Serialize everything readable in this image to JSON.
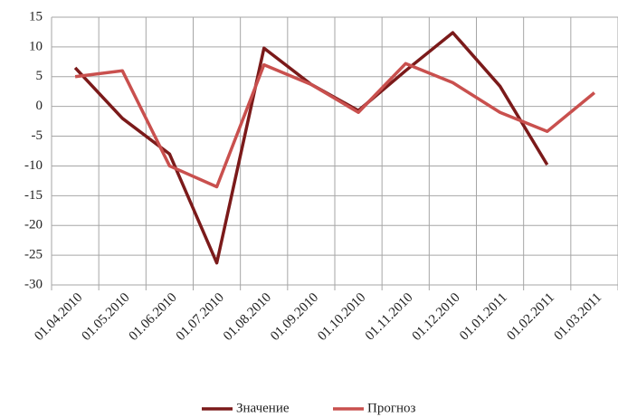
{
  "chart_data": {
    "type": "line",
    "categories": [
      "01.04.2010",
      "01.05.2010",
      "01.06.2010",
      "01.07.2010",
      "01.08.2010",
      "01.09.2010",
      "01.10.2010",
      "01.11.2010",
      "01.12.2010",
      "01.01.2011",
      "01.02.2011",
      "01.03.2011"
    ],
    "series": [
      {
        "name": "Значение",
        "color": "#7b1a1a",
        "values": [
          6.5,
          -2,
          -8,
          -26.3,
          9.8,
          3.7,
          -0.7,
          6,
          12.4,
          3.4,
          -9.8,
          null
        ]
      },
      {
        "name": "Прогноз",
        "color": "#c9504e",
        "values": [
          5,
          6,
          -10,
          -13.5,
          7,
          3.7,
          -1,
          7.2,
          4,
          -1,
          -4.2,
          2.3
        ]
      }
    ],
    "ylim": [
      -30,
      15
    ],
    "yticks": [
      -30,
      -25,
      -20,
      -15,
      -10,
      -5,
      0,
      5,
      10,
      15
    ],
    "grid": true,
    "legend": "bottom"
  }
}
